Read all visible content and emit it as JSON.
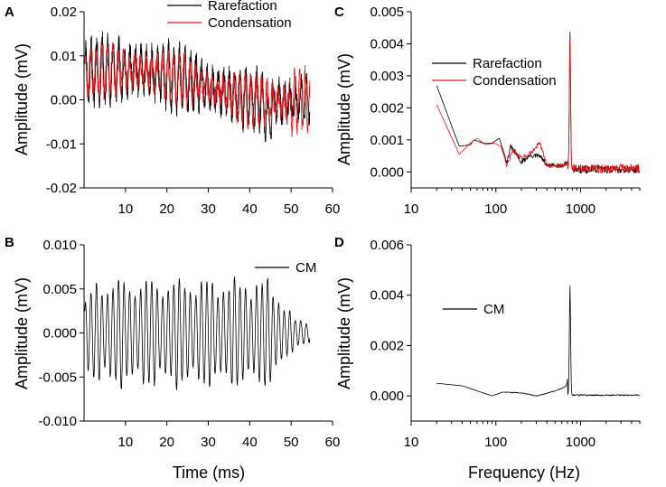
{
  "figure": {
    "x_label_time": "Time (ms)",
    "x_label_freq": "Frequency (Hz)"
  },
  "colors": {
    "black": "#000000",
    "red": "#e8141a"
  },
  "chart_data": [
    {
      "panel": "A",
      "type": "line",
      "xscale": "linear",
      "ylabel": "Amplitude (mV)",
      "xlim": [
        0,
        60
      ],
      "ylim": [
        -0.02,
        0.02
      ],
      "xticks": [
        10,
        20,
        30,
        40,
        50,
        60
      ],
      "xtick_labels": [
        "10",
        "20",
        "30",
        "40",
        "50",
        "60"
      ],
      "yticks": [
        -0.02,
        -0.01,
        0.0,
        0.01,
        0.02
      ],
      "ytick_labels": [
        "-0.02",
        "-0.01",
        "0.00",
        "0.01",
        "0.02"
      ],
      "legend": "top-right",
      "series": [
        {
          "name": "Rarefaction",
          "color": "#000000",
          "gen": "time",
          "mode": "a_raref",
          "seed": 11
        },
        {
          "name": "Condensation",
          "color": "#e8141a",
          "gen": "time",
          "mode": "a_cond",
          "seed": 23
        }
      ]
    },
    {
      "panel": "B",
      "type": "line",
      "xscale": "linear",
      "ylabel": "Amplitude (mV)",
      "xlim": [
        0,
        60
      ],
      "ylim": [
        -0.01,
        0.01
      ],
      "xticks": [
        10,
        20,
        30,
        40,
        50,
        60
      ],
      "xtick_labels": [
        "10",
        "20",
        "30",
        "40",
        "50",
        "60"
      ],
      "yticks": [
        -0.01,
        -0.005,
        0.0,
        0.005,
        0.01
      ],
      "ytick_labels": [
        "-0.010",
        "-0.005",
        "0.000",
        "0.005",
        "0.010"
      ],
      "legend": "top-right",
      "series": [
        {
          "name": "CM",
          "color": "#000000",
          "gen": "time",
          "mode": "b_cm",
          "seed": 5
        }
      ]
    },
    {
      "panel": "C",
      "type": "line",
      "xscale": "log",
      "ylabel": "Amplitude (mV)",
      "xlim": [
        10,
        5000
      ],
      "ylim": [
        -0.0005,
        0.005
      ],
      "xticks": [
        10,
        100,
        1000
      ],
      "xtick_labels": [
        "10",
        "100",
        "1000"
      ],
      "yticks": [
        0.0,
        0.001,
        0.002,
        0.003,
        0.004,
        0.005
      ],
      "ytick_labels": [
        "0.000",
        "0.001",
        "0.002",
        "0.003",
        "0.004",
        "0.005"
      ],
      "legend": "center",
      "peak_hz": 750,
      "series": [
        {
          "name": "Rarefaction",
          "color": "#000000",
          "gen": "freq",
          "seed": 31,
          "anchors": [
            [
              20,
              0.0027
            ],
            [
              37,
              0.0008
            ],
            [
              50,
              0.00085
            ],
            [
              55,
              0.001
            ],
            [
              70,
              0.0009
            ],
            [
              90,
              0.0009
            ],
            [
              110,
              0.00105
            ],
            [
              135,
              0.0003
            ],
            [
              150,
              0.0008
            ],
            [
              200,
              0.0003
            ],
            [
              250,
              0.0005
            ],
            [
              330,
              0.0005
            ],
            [
              400,
              0.0002
            ],
            [
              600,
              0.0002
            ],
            [
              700,
              0.0003
            ],
            [
              720,
              0.0009
            ]
          ],
          "peak": 0.0044,
          "noise": 0.00018,
          "tail": 8e-05
        },
        {
          "name": "Condensation",
          "color": "#e8141a",
          "gen": "freq",
          "seed": 47,
          "anchors": [
            [
              20,
              0.0021
            ],
            [
              37,
              0.00055
            ],
            [
              50,
              0.0009
            ],
            [
              60,
              0.00105
            ],
            [
              75,
              0.00085
            ],
            [
              95,
              0.0009
            ],
            [
              115,
              0.0008
            ],
            [
              135,
              0.0002
            ],
            [
              160,
              0.0007
            ],
            [
              200,
              0.0004
            ],
            [
              260,
              0.0006
            ],
            [
              330,
              0.0009
            ],
            [
              400,
              0.0002
            ],
            [
              600,
              0.0002
            ],
            [
              700,
              0.0003
            ],
            [
              720,
              0.0009
            ]
          ],
          "peak": 0.0042,
          "noise": 0.0002,
          "tail": 0.0001
        }
      ]
    },
    {
      "panel": "D",
      "type": "line",
      "xscale": "log",
      "ylabel": "Amplitude (mV)",
      "xlim": [
        10,
        5000
      ],
      "ylim": [
        -0.001,
        0.006
      ],
      "xticks": [
        10,
        100,
        1000
      ],
      "xtick_labels": [
        "10",
        "100",
        "1000"
      ],
      "yticks": [
        0.0,
        0.002,
        0.004,
        0.006
      ],
      "ytick_labels": [
        "0.000",
        "0.002",
        "0.004",
        "0.006"
      ],
      "legend": "left",
      "peak_hz": 750,
      "series": [
        {
          "name": "CM",
          "color": "#000000",
          "gen": "freq",
          "seed": 59,
          "anchors": [
            [
              20,
              0.0005
            ],
            [
              40,
              0.0004
            ],
            [
              60,
              0.0002
            ],
            [
              90,
              0.0
            ],
            [
              120,
              0.00015
            ],
            [
              200,
              0.00012
            ],
            [
              300,
              0.0
            ],
            [
              400,
              0.0001
            ],
            [
              500,
              0.0002
            ],
            [
              600,
              0.0003
            ],
            [
              680,
              0.0004
            ],
            [
              720,
              0.0009
            ]
          ],
          "peak": 0.0044,
          "noise": 4e-05,
          "tail": 3e-05
        }
      ]
    }
  ]
}
